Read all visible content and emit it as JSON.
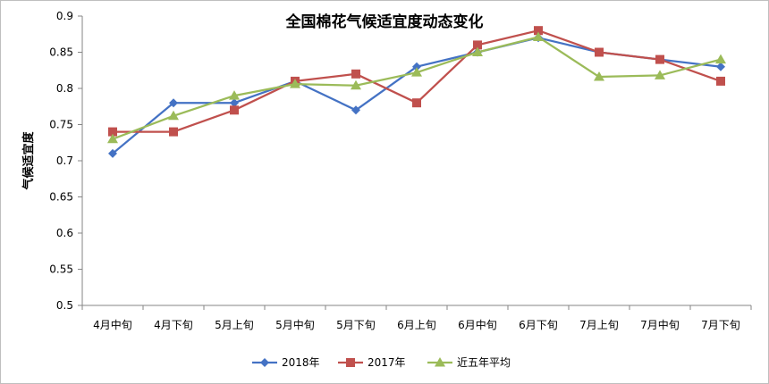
{
  "chart_data": {
    "type": "line",
    "title": "全国棉花气候适宜度动态变化",
    "xlabel": "",
    "ylabel": "气候适宜度",
    "ylim": [
      0.5,
      0.9
    ],
    "yticks": [
      "0.5",
      "0.55",
      "0.6",
      "0.65",
      "0.7",
      "0.75",
      "0.8",
      "0.85",
      "0.9"
    ],
    "grid": false,
    "legend_position": "bottom",
    "categories": [
      "4月中旬",
      "4月下旬",
      "5月上旬",
      "5月中旬",
      "5月下旬",
      "6月上旬",
      "6月中旬",
      "6月下旬",
      "7月上旬",
      "7月中旬",
      "7月下旬"
    ],
    "series": [
      {
        "name": "2018年",
        "color": "#4472C4",
        "marker": "diamond",
        "values": [
          0.71,
          0.78,
          0.78,
          0.81,
          0.77,
          0.83,
          0.85,
          0.87,
          0.85,
          0.84,
          0.83
        ]
      },
      {
        "name": "2017年",
        "color": "#C0504D",
        "marker": "square",
        "values": [
          0.74,
          0.74,
          0.77,
          0.81,
          0.82,
          0.78,
          0.86,
          0.88,
          0.85,
          0.84,
          0.81
        ]
      },
      {
        "name": "近五年平均",
        "color": "#9BBB59",
        "marker": "triangle",
        "values": [
          0.73,
          0.762,
          0.79,
          0.806,
          0.804,
          0.822,
          0.85,
          0.871,
          0.816,
          0.818,
          0.84
        ]
      }
    ]
  }
}
